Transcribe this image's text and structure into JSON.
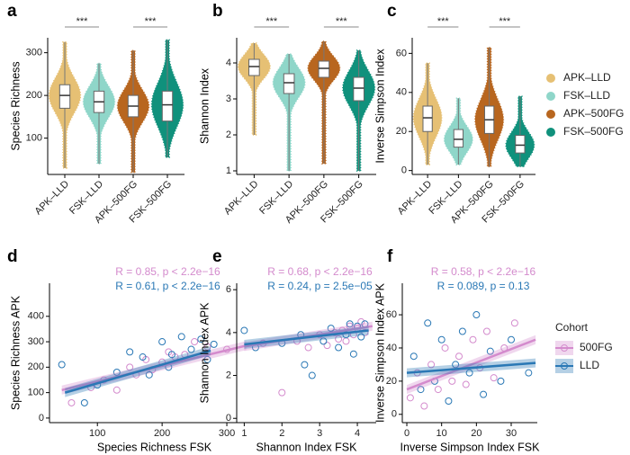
{
  "chart_data": [
    {
      "type": "violin",
      "panel": "a",
      "ylabel": "Species Richness",
      "categories": [
        "APK–LLD",
        "FSK–LLD",
        "APK–500FG",
        "FSK–500FG"
      ],
      "colors": [
        "#e6c074",
        "#8fd6c9",
        "#b8661f",
        "#10917c"
      ],
      "values": [
        [
          30,
          170,
          200,
          225,
          325
        ],
        [
          40,
          160,
          185,
          210,
          275
        ],
        [
          20,
          150,
          175,
          200,
          305
        ],
        [
          55,
          140,
          178,
          210,
          330
        ]
      ],
      "ylim": [
        15,
        335
      ],
      "yticks": [
        100,
        200,
        300
      ],
      "brackets": [
        {
          "label": "***",
          "between": [
            "APK–LLD",
            "FSK–LLD"
          ]
        },
        {
          "label": "***",
          "between": [
            "APK–500FG",
            "FSK–500FG"
          ]
        }
      ]
    },
    {
      "type": "violin",
      "panel": "b",
      "ylabel": "Shannon Index",
      "categories": [
        "APK–LLD",
        "FSK–LLD",
        "APK–500FG",
        "FSK–500FG"
      ],
      "colors": [
        "#e6c074",
        "#8fd6c9",
        "#b8661f",
        "#10917c"
      ],
      "values": [
        [
          2.0,
          3.65,
          3.9,
          4.1,
          4.55
        ],
        [
          1.0,
          3.15,
          3.45,
          3.7,
          4.25
        ],
        [
          1.2,
          3.6,
          3.85,
          4.05,
          4.6
        ],
        [
          1.0,
          2.95,
          3.3,
          3.6,
          4.35
        ]
      ],
      "ylim": [
        0.9,
        4.7
      ],
      "yticks": [
        1,
        2,
        3,
        4
      ],
      "brackets": [
        {
          "label": "***",
          "between": [
            "APK–LLD",
            "FSK–LLD"
          ]
        },
        {
          "label": "***",
          "between": [
            "APK–500FG",
            "FSK–500FG"
          ]
        }
      ]
    },
    {
      "type": "violin",
      "panel": "c",
      "ylabel": "Inverse Simpson Index",
      "categories": [
        "APK–LLD",
        "FSK–LLD",
        "APK–500FG",
        "FSK–500FG"
      ],
      "colors": [
        "#e6c074",
        "#8fd6c9",
        "#b8661f",
        "#10917c"
      ],
      "values": [
        [
          3,
          20,
          27,
          33,
          55
        ],
        [
          3,
          12,
          16,
          21,
          37
        ],
        [
          2,
          19,
          26,
          33,
          63
        ],
        [
          2,
          9,
          13,
          18,
          38
        ]
      ],
      "ylim": [
        -2,
        68
      ],
      "yticks": [
        0,
        20,
        40,
        60
      ],
      "legend": true,
      "brackets": [
        {
          "label": "***",
          "between": [
            "APK–LLD",
            "FSK–LLD"
          ]
        },
        {
          "label": "***",
          "between": [
            "APK–500FG",
            "FSK–500FG"
          ]
        }
      ]
    },
    {
      "type": "scatter",
      "panel": "d",
      "xlabel": "Species Richness FSK",
      "ylabel": "Species Richness APK",
      "xlim": [
        26,
        350
      ],
      "ylim": [
        -18,
        530
      ],
      "xticks": [
        100,
        200,
        300
      ],
      "yticks": [
        0,
        100,
        200,
        300,
        400
      ],
      "series": [
        {
          "name": "500FG",
          "color": "#d48bcd",
          "stat": "R = 0.85, p < 2.2e−16",
          "x": [
            60,
            90,
            110,
            130,
            150,
            160,
            175,
            185,
            200,
            210,
            220,
            235,
            250,
            270,
            300
          ],
          "y": [
            60,
            120,
            150,
            110,
            200,
            170,
            230,
            190,
            220,
            260,
            240,
            250,
            300,
            280,
            270
          ],
          "fit_x": [
            45,
            330
          ],
          "fit_y": [
            110,
            285
          ]
        },
        {
          "name": "LLD",
          "color": "#2a78b5",
          "stat": "R = 0.61, p < 2.2e−16",
          "x": [
            45,
            80,
            100,
            130,
            150,
            170,
            180,
            200,
            215,
            230,
            245,
            260,
            270,
            280,
            210
          ],
          "y": [
            210,
            60,
            130,
            180,
            260,
            240,
            170,
            300,
            250,
            320,
            270,
            310,
            230,
            290,
            200
          ],
          "fit_x": [
            50,
            275
          ],
          "fit_y": [
            100,
            265
          ]
        }
      ]
    },
    {
      "type": "scatter",
      "panel": "e",
      "xlabel": "Shannon Index FSK",
      "ylabel": "Shannon Index APK",
      "xlim": [
        0.8,
        4.5
      ],
      "ylim": [
        -0.2,
        6.3
      ],
      "xticks": [
        1,
        2,
        3,
        4
      ],
      "yticks": [
        0,
        2,
        4,
        6
      ],
      "series": [
        {
          "name": "500FG",
          "color": "#d48bcd",
          "stat": "R = 0.68, p < 2.2e−16",
          "x": [
            1.5,
            2.0,
            2.4,
            2.7,
            3.0,
            3.2,
            3.4,
            3.5,
            3.6,
            3.7,
            3.8,
            3.9,
            4.0,
            4.1,
            4.2
          ],
          "y": [
            3.5,
            1.2,
            3.6,
            3.3,
            3.9,
            3.4,
            4.0,
            3.7,
            4.1,
            3.6,
            4.3,
            3.9,
            4.2,
            4.5,
            4.0
          ],
          "fit_x": [
            1,
            4.4
          ],
          "fit_y": [
            3.35,
            4.3
          ]
        },
        {
          "name": "LLD",
          "color": "#2a78b5",
          "stat": "R = 0.24, p = 2.5e−05",
          "x": [
            1.0,
            1.3,
            2.0,
            2.5,
            2.8,
            3.1,
            3.3,
            3.5,
            3.7,
            3.8,
            3.9,
            4.0,
            4.1,
            4.2,
            2.6
          ],
          "y": [
            4.1,
            3.3,
            3.5,
            3.9,
            2.0,
            3.6,
            4.2,
            3.3,
            3.9,
            4.4,
            3.0,
            4.3,
            3.8,
            4.4,
            2.5
          ],
          "fit_x": [
            1,
            4.3
          ],
          "fit_y": [
            3.45,
            4.1
          ]
        }
      ]
    },
    {
      "type": "scatter",
      "panel": "f",
      "xlabel": "Inverse Simpson Index FSK",
      "ylabel": "Inverse Simpson Index APK",
      "xlim": [
        -1.3,
        37.5
      ],
      "ylim": [
        -5,
        79
      ],
      "xticks": [
        0,
        10,
        20,
        30
      ],
      "yticks": [
        0,
        20,
        40,
        60
      ],
      "legend_title": "Cohort",
      "legend": true,
      "series": [
        {
          "name": "500FG",
          "color": "#d48bcd",
          "stat": "R = 0.58, p < 2.2e−16",
          "x": [
            1,
            3,
            5,
            7,
            9,
            11,
            13,
            15,
            17,
            19,
            21,
            23,
            25,
            28,
            31
          ],
          "y": [
            10,
            25,
            5,
            30,
            15,
            40,
            20,
            35,
            18,
            45,
            28,
            50,
            22,
            40,
            55
          ],
          "fit_x": [
            0,
            37
          ],
          "fit_y": [
            15,
            45
          ]
        },
        {
          "name": "LLD",
          "color": "#2a78b5",
          "stat": "R = 0.089, p = 0.13",
          "x": [
            2,
            4,
            6,
            8,
            10,
            12,
            14,
            16,
            18,
            20,
            22,
            24,
            27,
            30,
            35
          ],
          "y": [
            35,
            15,
            55,
            20,
            45,
            8,
            30,
            50,
            25,
            60,
            12,
            38,
            20,
            45,
            25
          ],
          "fit_x": [
            0,
            37
          ],
          "fit_y": [
            25,
            31
          ]
        }
      ]
    }
  ]
}
